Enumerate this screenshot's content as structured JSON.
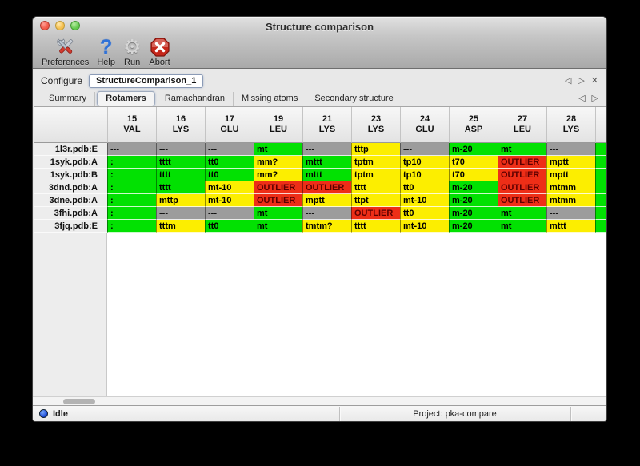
{
  "window": {
    "title": "Structure comparison"
  },
  "toolbar": {
    "items": [
      {
        "label": "Preferences",
        "icon": "tools-icon"
      },
      {
        "label": "Help",
        "icon": "question-icon"
      },
      {
        "label": "Run",
        "icon": "gear-icon"
      },
      {
        "label": "Abort",
        "icon": "stop-icon"
      }
    ]
  },
  "configure": {
    "label": "Configure",
    "value": "StructureComparison_1"
  },
  "tabs": {
    "selected": "Rotamers",
    "items": [
      "Summary",
      "Rotamers",
      "Ramachandran",
      "Missing atoms",
      "Secondary structure"
    ]
  },
  "table": {
    "columns": [
      {
        "num": "15",
        "res": "VAL"
      },
      {
        "num": "16",
        "res": "LYS"
      },
      {
        "num": "17",
        "res": "GLU"
      },
      {
        "num": "19",
        "res": "LEU"
      },
      {
        "num": "21",
        "res": "LYS"
      },
      {
        "num": "23",
        "res": "LYS"
      },
      {
        "num": "24",
        "res": "GLU"
      },
      {
        "num": "25",
        "res": "ASP"
      },
      {
        "num": "27",
        "res": "LEU"
      },
      {
        "num": "28",
        "res": "LYS"
      }
    ],
    "rows": [
      {
        "label": "1l3r.pdb:E",
        "cells": [
          [
            "x",
            "---"
          ],
          [
            "x",
            "---"
          ],
          [
            "x",
            "---"
          ],
          [
            "g",
            "mt"
          ],
          [
            "x",
            "---"
          ],
          [
            "y",
            "tttp"
          ],
          [
            "x",
            "---"
          ],
          [
            "g",
            "m-20"
          ],
          [
            "g",
            "mt"
          ],
          [
            "x",
            "---"
          ]
        ],
        "partial": "g"
      },
      {
        "label": "1syk.pdb:A",
        "cells": [
          [
            "g",
            ":"
          ],
          [
            "g",
            "tttt"
          ],
          [
            "g",
            "tt0"
          ],
          [
            "y",
            "mm?"
          ],
          [
            "g",
            "mttt"
          ],
          [
            "y",
            "tptm"
          ],
          [
            "y",
            "tp10"
          ],
          [
            "y",
            "t70"
          ],
          [
            "r",
            "OUTLIER"
          ],
          [
            "y",
            "mptt"
          ]
        ],
        "partial": "g"
      },
      {
        "label": "1syk.pdb:B",
        "cells": [
          [
            "g",
            ":"
          ],
          [
            "g",
            "tttt"
          ],
          [
            "g",
            "tt0"
          ],
          [
            "y",
            "mm?"
          ],
          [
            "g",
            "mttt"
          ],
          [
            "y",
            "tptm"
          ],
          [
            "y",
            "tp10"
          ],
          [
            "y",
            "t70"
          ],
          [
            "r",
            "OUTLIER"
          ],
          [
            "y",
            "mptt"
          ]
        ],
        "partial": "g"
      },
      {
        "label": "3dnd.pdb:A",
        "cells": [
          [
            "g",
            ":"
          ],
          [
            "g",
            "tttt"
          ],
          [
            "y",
            "mt-10"
          ],
          [
            "r",
            "OUTLIER"
          ],
          [
            "r",
            "OUTLIER"
          ],
          [
            "y",
            "tttt"
          ],
          [
            "y",
            "tt0"
          ],
          [
            "g",
            "m-20"
          ],
          [
            "r",
            "OUTLIER"
          ],
          [
            "y",
            "mtmm"
          ]
        ],
        "partial": "g"
      },
      {
        "label": "3dne.pdb:A",
        "cells": [
          [
            "g",
            ":"
          ],
          [
            "y",
            "mttp"
          ],
          [
            "y",
            "mt-10"
          ],
          [
            "r",
            "OUTLIER"
          ],
          [
            "y",
            "mptt"
          ],
          [
            "y",
            "ttpt"
          ],
          [
            "y",
            "mt-10"
          ],
          [
            "g",
            "m-20"
          ],
          [
            "r",
            "OUTLIER"
          ],
          [
            "y",
            "mtmm"
          ]
        ],
        "partial": "g"
      },
      {
        "label": "3fhi.pdb:A",
        "cells": [
          [
            "g",
            ":"
          ],
          [
            "x",
            "---"
          ],
          [
            "x",
            "---"
          ],
          [
            "g",
            "mt"
          ],
          [
            "x",
            "---"
          ],
          [
            "r",
            "OUTLIER"
          ],
          [
            "y",
            "tt0"
          ],
          [
            "g",
            "m-20"
          ],
          [
            "g",
            "mt"
          ],
          [
            "x",
            "---"
          ]
        ],
        "partial": "g"
      },
      {
        "label": "3fjq.pdb:E",
        "cells": [
          [
            "g",
            ":"
          ],
          [
            "y",
            "tttm"
          ],
          [
            "g",
            "tt0"
          ],
          [
            "g",
            "mt"
          ],
          [
            "y",
            "tmtm?"
          ],
          [
            "y",
            "tttt"
          ],
          [
            "y",
            "mt-10"
          ],
          [
            "g",
            "m-20"
          ],
          [
            "g",
            "mt"
          ],
          [
            "y",
            "mttt"
          ]
        ],
        "partial": "g"
      }
    ]
  },
  "statusbar": {
    "status": "Idle",
    "project": "Project: pka-compare"
  },
  "colors": {
    "green": "#02e102",
    "yellow": "#fcee00",
    "red": "#ee2e17",
    "gray": "#9c9c9c",
    "outlier_text": "#5c0000",
    "accent_blue": "#2f72d8"
  }
}
